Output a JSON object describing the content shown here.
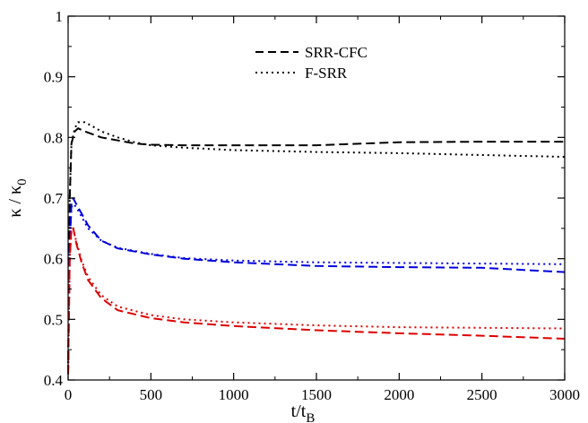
{
  "chart_data": {
    "type": "line",
    "title": "",
    "xlabel_main": "t/t",
    "xlabel_sub": "B",
    "ylabel_main": "κ / κ",
    "ylabel_sub": "0",
    "xlim": [
      0,
      3000
    ],
    "ylim": [
      0.4,
      1.0
    ],
    "x_ticks": [
      0,
      500,
      1000,
      1500,
      2000,
      2500,
      3000
    ],
    "x_tick_labels": [
      "0",
      "500",
      "1000",
      "1500",
      "2000",
      "2500",
      "3000"
    ],
    "y_ticks": [
      0.4,
      0.5,
      0.6,
      0.7,
      0.8,
      0.9,
      1.0
    ],
    "y_tick_labels": [
      "0.4",
      "0.5",
      "0.6",
      "0.7",
      "0.8",
      "0.9",
      "1"
    ],
    "grid": false,
    "legend_placement": "top-center",
    "legend": [
      {
        "label": "SRR-CFC",
        "style": "dashed"
      },
      {
        "label": "F-SRR",
        "style": "dotted"
      }
    ],
    "series": [
      {
        "color": "#000000",
        "style": "dashed",
        "x": [
          0,
          10,
          20,
          40,
          60,
          100,
          150,
          200,
          300,
          400,
          500,
          700,
          1000,
          1500,
          2000,
          2500,
          3000
        ],
        "y": [
          0.41,
          0.7,
          0.79,
          0.81,
          0.815,
          0.81,
          0.805,
          0.8,
          0.795,
          0.79,
          0.788,
          0.787,
          0.787,
          0.787,
          0.792,
          0.793,
          0.793
        ]
      },
      {
        "color": "#000000",
        "style": "dotted",
        "x": [
          0,
          10,
          20,
          40,
          60,
          100,
          150,
          200,
          300,
          400,
          500,
          700,
          1000,
          1500,
          2000,
          2500,
          3000
        ],
        "y": [
          0.41,
          0.7,
          0.79,
          0.815,
          0.825,
          0.825,
          0.818,
          0.81,
          0.8,
          0.792,
          0.787,
          0.783,
          0.779,
          0.776,
          0.774,
          0.771,
          0.768
        ]
      },
      {
        "color": "#0000dd",
        "style": "dashed",
        "x": [
          0,
          10,
          20,
          30,
          50,
          80,
          120,
          200,
          300,
          500,
          700,
          1000,
          1500,
          2000,
          2500,
          3000
        ],
        "y": [
          0.41,
          0.62,
          0.69,
          0.7,
          0.69,
          0.675,
          0.655,
          0.63,
          0.617,
          0.607,
          0.6,
          0.594,
          0.588,
          0.586,
          0.585,
          0.578
        ]
      },
      {
        "color": "#0000dd",
        "style": "dotted",
        "x": [
          0,
          10,
          20,
          30,
          50,
          80,
          120,
          200,
          300,
          500,
          700,
          1000,
          1500,
          2000,
          2500,
          3000
        ],
        "y": [
          0.41,
          0.62,
          0.685,
          0.69,
          0.685,
          0.67,
          0.65,
          0.63,
          0.618,
          0.608,
          0.601,
          0.597,
          0.594,
          0.593,
          0.592,
          0.591
        ]
      },
      {
        "color": "#dd0000",
        "style": "dashed",
        "x": [
          0,
          10,
          20,
          30,
          50,
          80,
          120,
          200,
          300,
          500,
          700,
          1000,
          1500,
          2000,
          2500,
          3000
        ],
        "y": [
          0.41,
          0.6,
          0.65,
          0.652,
          0.625,
          0.595,
          0.565,
          0.535,
          0.515,
          0.502,
          0.495,
          0.489,
          0.482,
          0.477,
          0.473,
          0.468
        ]
      },
      {
        "color": "#dd0000",
        "style": "dotted",
        "x": [
          0,
          10,
          20,
          30,
          50,
          80,
          120,
          200,
          300,
          500,
          700,
          1000,
          1500,
          2000,
          2500,
          3000
        ],
        "y": [
          0.41,
          0.6,
          0.645,
          0.65,
          0.628,
          0.598,
          0.57,
          0.54,
          0.521,
          0.507,
          0.5,
          0.495,
          0.49,
          0.487,
          0.486,
          0.485
        ]
      }
    ]
  }
}
